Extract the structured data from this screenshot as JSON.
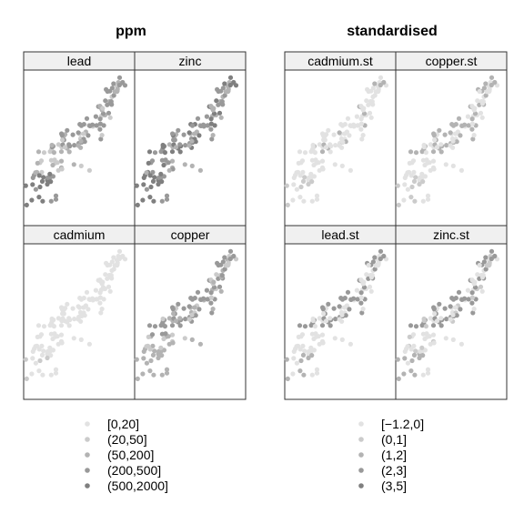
{
  "chart_data": [
    {
      "type": "scatter",
      "title": "ppm",
      "panels": [
        "lead",
        "zinc",
        "cadmium",
        "copper"
      ],
      "legend": {
        "placement": "bottom",
        "entries": [
          "[0,20]",
          "(20,50]",
          "(50,200]",
          "(200,500]",
          "(500,2000]"
        ],
        "colors": [
          "#e2e2e2",
          "#cbcbcb",
          "#b3b3b3",
          "#999999",
          "#7f7f7f"
        ]
      }
    },
    {
      "type": "scatter",
      "title": "standardised",
      "panels": [
        "cadmium.st",
        "copper.st",
        "lead.st",
        "zinc.st"
      ],
      "legend": {
        "placement": "bottom",
        "entries": [
          "[−1.2,0]",
          "(0,1]",
          "(1,2]",
          "(2,3]",
          "(3,5]"
        ],
        "colors": [
          "#e2e2e2",
          "#cbcbcb",
          "#b3b3b3",
          "#999999",
          "#7f7f7f"
        ]
      }
    }
  ]
}
